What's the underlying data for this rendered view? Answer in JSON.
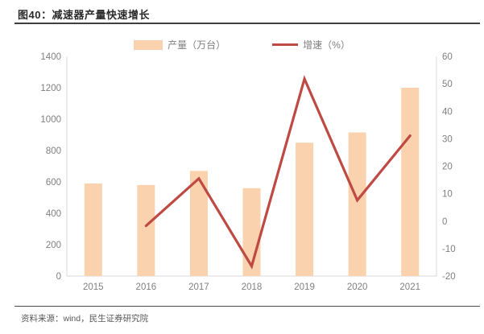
{
  "page": {
    "title": "图40：减速器产量快速增长",
    "source": "资料来源：wind，民生证券研究院"
  },
  "colors": {
    "bar": "#FAD2AE",
    "line": "#BE4A43",
    "axis_line": "#D9D9D9",
    "tick_text": "#808080",
    "title_text": "#2B2B2B",
    "source_text": "#595959"
  },
  "chart_data": {
    "type": "bar",
    "subtype": "bar+line combo, dual axis",
    "categories": [
      "2015",
      "2016",
      "2017",
      "2018",
      "2019",
      "2020",
      "2021"
    ],
    "series": [
      {
        "name": "产量（万台）",
        "type": "bar",
        "axis": "left",
        "values": [
          590,
          580,
          670,
          560,
          850,
          915,
          1200
        ]
      },
      {
        "name": "增速（%）",
        "type": "line",
        "axis": "right",
        "values": [
          null,
          -1.7,
          15.5,
          -16.4,
          51.8,
          7.6,
          31.1
        ]
      }
    ],
    "left_axis": {
      "min": 0,
      "max": 1400,
      "ticks": [
        0,
        200,
        400,
        600,
        800,
        1000,
        1200,
        1400
      ]
    },
    "right_axis": {
      "min": -20,
      "max": 60,
      "ticks": [
        -20,
        -10,
        0,
        10,
        20,
        30,
        40,
        50,
        60
      ]
    },
    "grid": false,
    "legend_position": "top-center"
  }
}
